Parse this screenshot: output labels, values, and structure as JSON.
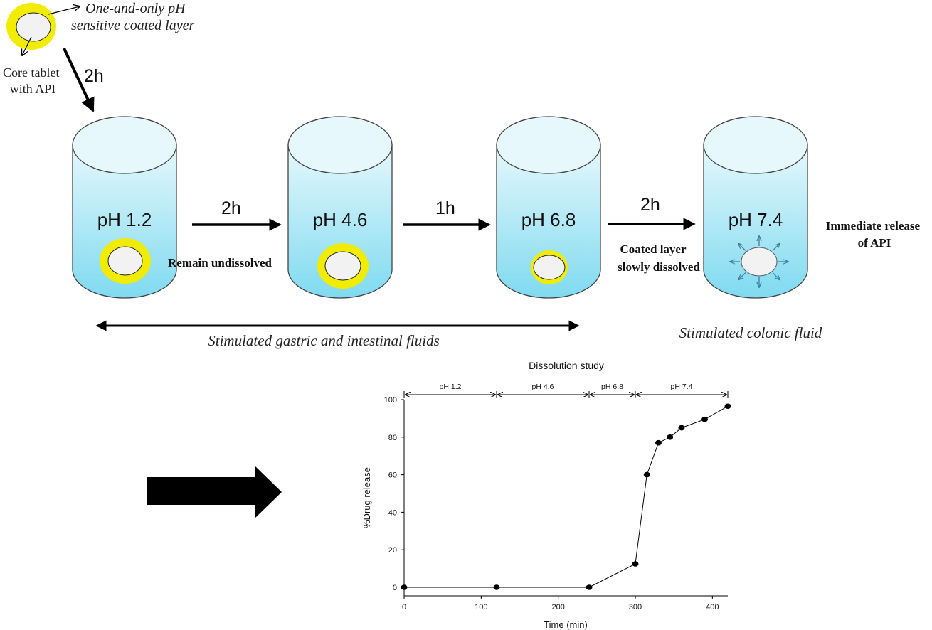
{
  "diagram": {
    "tablet_layer_label": [
      "One-and-only pH",
      "sensitive coated layer"
    ],
    "tablet_core_label": [
      "Core tablet",
      "with API"
    ],
    "first_arrow_time": "2h",
    "vessels": [
      {
        "ph": "pH 1.2"
      },
      {
        "ph": "pH 4.6"
      },
      {
        "ph": "pH 6.8"
      },
      {
        "ph": "pH 7.4"
      }
    ],
    "transfer_times": [
      "2h",
      "1h",
      "2h"
    ],
    "notes": {
      "remain": "Remain undissolved",
      "coated": [
        "Coated layer",
        "slowly dissolved"
      ],
      "immediate": [
        "Immediate release",
        "of API"
      ]
    },
    "gastric_intestinal_label": "Stimulated gastric and intestinal fluids",
    "colonic_label": "Stimulated colonic fluid",
    "colors": {
      "vessel_light": "#e6f8fc",
      "vessel_dark": "#7fdaf0",
      "coat": "#f2ec00",
      "core": "#f2f2f2",
      "arrow": "#000000",
      "release_arrow": "#3b7f9e"
    }
  },
  "chart_data": {
    "type": "line",
    "title": "Dissolution study",
    "xlabel": "Time (min)",
    "ylabel": "%Drug release",
    "xlim": [
      0,
      420
    ],
    "ylim": [
      0,
      100
    ],
    "xticks": [
      0,
      100,
      200,
      300,
      400
    ],
    "yticks": [
      0,
      20,
      40,
      60,
      80,
      100
    ],
    "ph_ranges": [
      {
        "label": "pH 1.2",
        "start": 0,
        "end": 120
      },
      {
        "label": "pH 4.6",
        "start": 120,
        "end": 240
      },
      {
        "label": "pH 6.8",
        "start": 240,
        "end": 300
      },
      {
        "label": "pH 7.4",
        "start": 300,
        "end": 420
      }
    ],
    "series": [
      {
        "x": [
          0,
          120,
          240,
          300,
          315,
          330,
          345,
          360,
          390,
          420
        ],
        "y": [
          0,
          0,
          0,
          12.5,
          60,
          77,
          80,
          85,
          89.5,
          96.5
        ]
      }
    ]
  }
}
